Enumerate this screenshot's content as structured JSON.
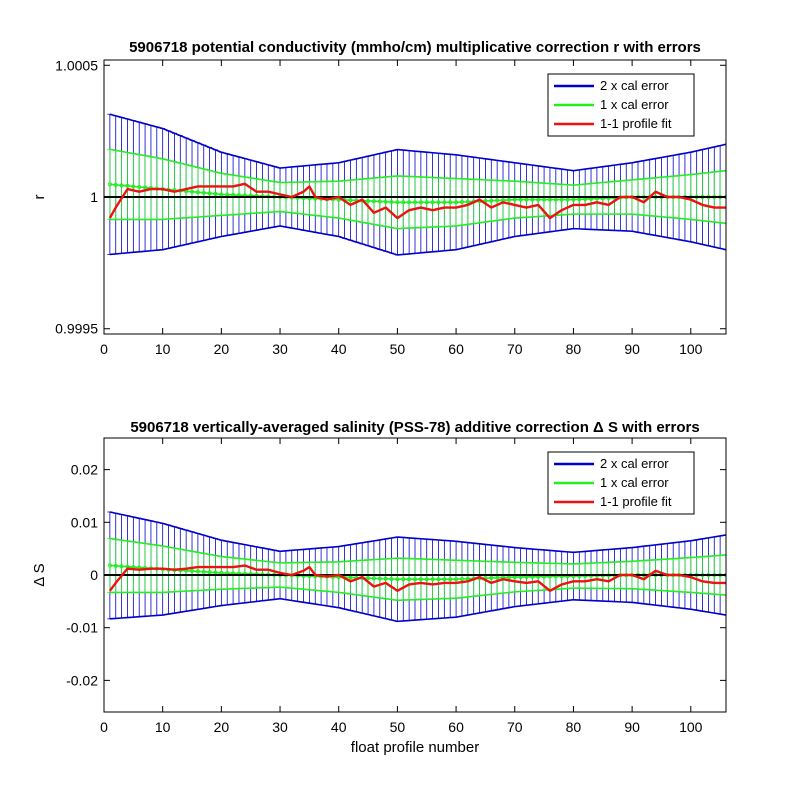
{
  "chart_data": [
    {
      "type": "line",
      "title": "5906718 potential conductivity (mmho/cm) multiplicative correction r with errors",
      "xlabel": "",
      "ylabel": "r",
      "xlim": [
        0,
        106
      ],
      "ylim": [
        0.99948,
        1.00052
      ],
      "xticks": [
        0,
        10,
        20,
        30,
        40,
        50,
        60,
        70,
        80,
        90,
        100
      ],
      "xtick_labels": [
        "0",
        "10",
        "20",
        "30",
        "40",
        "50",
        "60",
        "70",
        "80",
        "90",
        "100"
      ],
      "yticks": [
        0.9995,
        1,
        1.0005
      ],
      "ytick_labels": [
        "0.9995",
        "1",
        "1.0005"
      ],
      "reference_line": 1,
      "grid": false,
      "legend_position": "top-right",
      "colors": {
        "two_cal": "#0000cc",
        "one_cal": "#22ee22",
        "fit": "#ee1111"
      },
      "series": [
        {
          "name": "2 x cal error",
          "type": "errorbar"
        },
        {
          "name": "1 x cal error",
          "type": "errorbar"
        },
        {
          "name": "1-1 profile fit",
          "type": "line"
        }
      ],
      "fit_center": {
        "x": [
          0,
          10,
          20,
          30,
          40,
          50,
          60,
          70,
          80,
          90,
          100,
          106
        ],
        "y": [
          1.00005,
          1.00003,
          1.00001,
          1.0,
          0.99999,
          0.99998,
          0.99998,
          0.99999,
          0.99999,
          1.0,
          1.0,
          1.0
        ]
      },
      "two_cal_halfwidth": {
        "x": [
          0,
          10,
          20,
          30,
          40,
          50,
          60,
          70,
          80,
          90,
          100,
          106
        ],
        "y": [
          0.00027,
          0.00023,
          0.00016,
          0.00011,
          0.00014,
          0.0002,
          0.00018,
          0.00014,
          0.00011,
          0.00013,
          0.00017,
          0.0002
        ]
      },
      "one_cal_halfwidth": {
        "x": [
          0,
          10,
          20,
          30,
          40,
          50,
          60,
          70,
          80,
          90,
          100,
          106
        ],
        "y": [
          0.000135,
          0.000115,
          8e-05,
          5.5e-05,
          7e-05,
          0.0001,
          9e-05,
          7e-05,
          5.5e-05,
          6.5e-05,
          8.5e-05,
          0.0001
        ]
      },
      "profile_fit": {
        "x": [
          1,
          2,
          4,
          6,
          8,
          10,
          12,
          14,
          16,
          18,
          20,
          22,
          24,
          26,
          28,
          30,
          32,
          34,
          35,
          36,
          38,
          40,
          42,
          44,
          46,
          48,
          50,
          52,
          54,
          56,
          58,
          60,
          62,
          64,
          66,
          68,
          70,
          72,
          74,
          76,
          78,
          80,
          82,
          84,
          86,
          88,
          90,
          92,
          94,
          96,
          98,
          100,
          102,
          104,
          106
        ],
        "y": [
          0.99992,
          0.99996,
          1.00003,
          1.00002,
          1.00003,
          1.00003,
          1.00002,
          1.00003,
          1.00004,
          1.00004,
          1.00004,
          1.00004,
          1.00005,
          1.00002,
          1.00002,
          1.00001,
          1.0,
          1.00002,
          1.00004,
          1.0,
          0.99999,
          1.0,
          0.99997,
          0.99999,
          0.99994,
          0.99996,
          0.99992,
          0.99995,
          0.99996,
          0.99995,
          0.99996,
          0.99996,
          0.99997,
          0.99999,
          0.99996,
          0.99998,
          0.99997,
          0.99996,
          0.99997,
          0.99992,
          0.99995,
          0.99997,
          0.99997,
          0.99998,
          0.99997,
          1.0,
          1.0,
          0.99998,
          1.00002,
          1.0,
          1.0,
          0.99999,
          0.99997,
          0.99996,
          0.99996
        ]
      }
    },
    {
      "type": "line",
      "title": "5906718 vertically-averaged salinity (PSS-78) additive correction Δ S with errors",
      "xlabel": "float profile number",
      "ylabel": "Δ S",
      "xlim": [
        0,
        106
      ],
      "ylim": [
        -0.026,
        0.026
      ],
      "xticks": [
        0,
        10,
        20,
        30,
        40,
        50,
        60,
        70,
        80,
        90,
        100
      ],
      "xtick_labels": [
        "0",
        "10",
        "20",
        "30",
        "40",
        "50",
        "60",
        "70",
        "80",
        "90",
        "100"
      ],
      "yticks": [
        -0.02,
        -0.01,
        0,
        0.01,
        0.02
      ],
      "ytick_labels": [
        "-0.02",
        "-0.01",
        "0",
        "0.01",
        "0.02"
      ],
      "reference_line": 0,
      "grid": false,
      "legend_position": "top-right",
      "colors": {
        "two_cal": "#0000cc",
        "one_cal": "#22ee22",
        "fit": "#ee1111"
      },
      "series": [
        {
          "name": "2 x cal error",
          "type": "errorbar"
        },
        {
          "name": "1 x cal error",
          "type": "errorbar"
        },
        {
          "name": "1-1 profile fit",
          "type": "line"
        }
      ],
      "fit_center": {
        "x": [
          0,
          10,
          20,
          30,
          40,
          50,
          60,
          70,
          80,
          90,
          100,
          106
        ],
        "y": [
          0.0019,
          0.0011,
          0.0004,
          0.0,
          -0.0004,
          -0.0008,
          -0.0008,
          -0.0004,
          -0.0002,
          0.0,
          0.0,
          0.0
        ]
      },
      "two_cal_halfwidth": {
        "x": [
          0,
          10,
          20,
          30,
          40,
          50,
          60,
          70,
          80,
          90,
          100,
          106
        ],
        "y": [
          0.0103,
          0.0087,
          0.0062,
          0.0045,
          0.0058,
          0.008,
          0.0072,
          0.0056,
          0.0045,
          0.0052,
          0.0065,
          0.0076
        ]
      },
      "one_cal_halfwidth": {
        "x": [
          0,
          10,
          20,
          30,
          40,
          50,
          60,
          70,
          80,
          90,
          100,
          106
        ],
        "y": [
          0.0052,
          0.0044,
          0.0031,
          0.0023,
          0.0029,
          0.004,
          0.0036,
          0.0028,
          0.0023,
          0.0026,
          0.0033,
          0.0038
        ]
      },
      "profile_fit": {
        "x": [
          1,
          2,
          4,
          6,
          8,
          10,
          12,
          14,
          16,
          18,
          20,
          22,
          24,
          26,
          28,
          30,
          32,
          34,
          35,
          36,
          38,
          40,
          42,
          44,
          46,
          48,
          50,
          52,
          54,
          56,
          58,
          60,
          62,
          64,
          66,
          68,
          70,
          72,
          74,
          76,
          78,
          80,
          82,
          84,
          86,
          88,
          90,
          92,
          94,
          96,
          98,
          100,
          102,
          104,
          106
        ],
        "y": [
          -0.003,
          -0.0015,
          0.0012,
          0.001,
          0.0012,
          0.0012,
          0.001,
          0.0012,
          0.0015,
          0.0015,
          0.0015,
          0.0015,
          0.0018,
          0.001,
          0.001,
          0.0004,
          0.0,
          0.0008,
          0.0015,
          0.0,
          -0.0003,
          0.0,
          -0.0012,
          -0.0004,
          -0.0022,
          -0.0015,
          -0.003,
          -0.0018,
          -0.0015,
          -0.0018,
          -0.0015,
          -0.0015,
          -0.0012,
          -0.0004,
          -0.0015,
          -0.0008,
          -0.0012,
          -0.0015,
          -0.0012,
          -0.003,
          -0.0018,
          -0.0012,
          -0.0012,
          -0.0008,
          -0.0012,
          0.0,
          0.0,
          -0.0008,
          0.0008,
          0.0,
          0.0,
          -0.0004,
          -0.0012,
          -0.0015,
          -0.0015
        ]
      }
    }
  ]
}
